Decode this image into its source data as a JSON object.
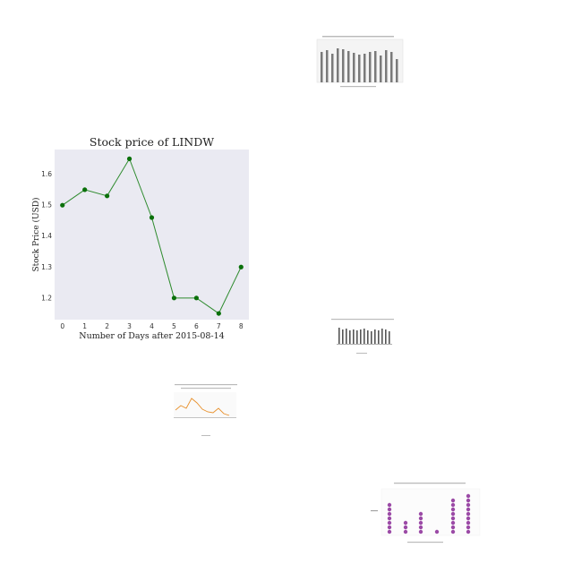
{
  "chart_data": [
    {
      "type": "line",
      "title": "Stock price of LINDW",
      "xlabel": "Number of Days after 2015-08-14",
      "ylabel": "Stock Price (USD)",
      "x": [
        0,
        1,
        2,
        3,
        4,
        5,
        6,
        7,
        8
      ],
      "y": [
        1.5,
        1.55,
        1.53,
        1.65,
        1.46,
        1.2,
        1.2,
        1.15,
        1.3
      ],
      "xticks": [
        "0",
        "1",
        "2",
        "3",
        "4",
        "5",
        "6",
        "7",
        "8"
      ],
      "yticks": [
        "1.2",
        "1.3",
        "1.4",
        "1.5",
        "1.6"
      ],
      "ylim": [
        1.13,
        1.68
      ],
      "xlim": [
        -0.35,
        8.35
      ],
      "colors": {
        "line": "#2e8b2e",
        "marker": "#0a700a",
        "plot_bg": "#eaeaf2"
      },
      "grid": false
    }
  ]
}
